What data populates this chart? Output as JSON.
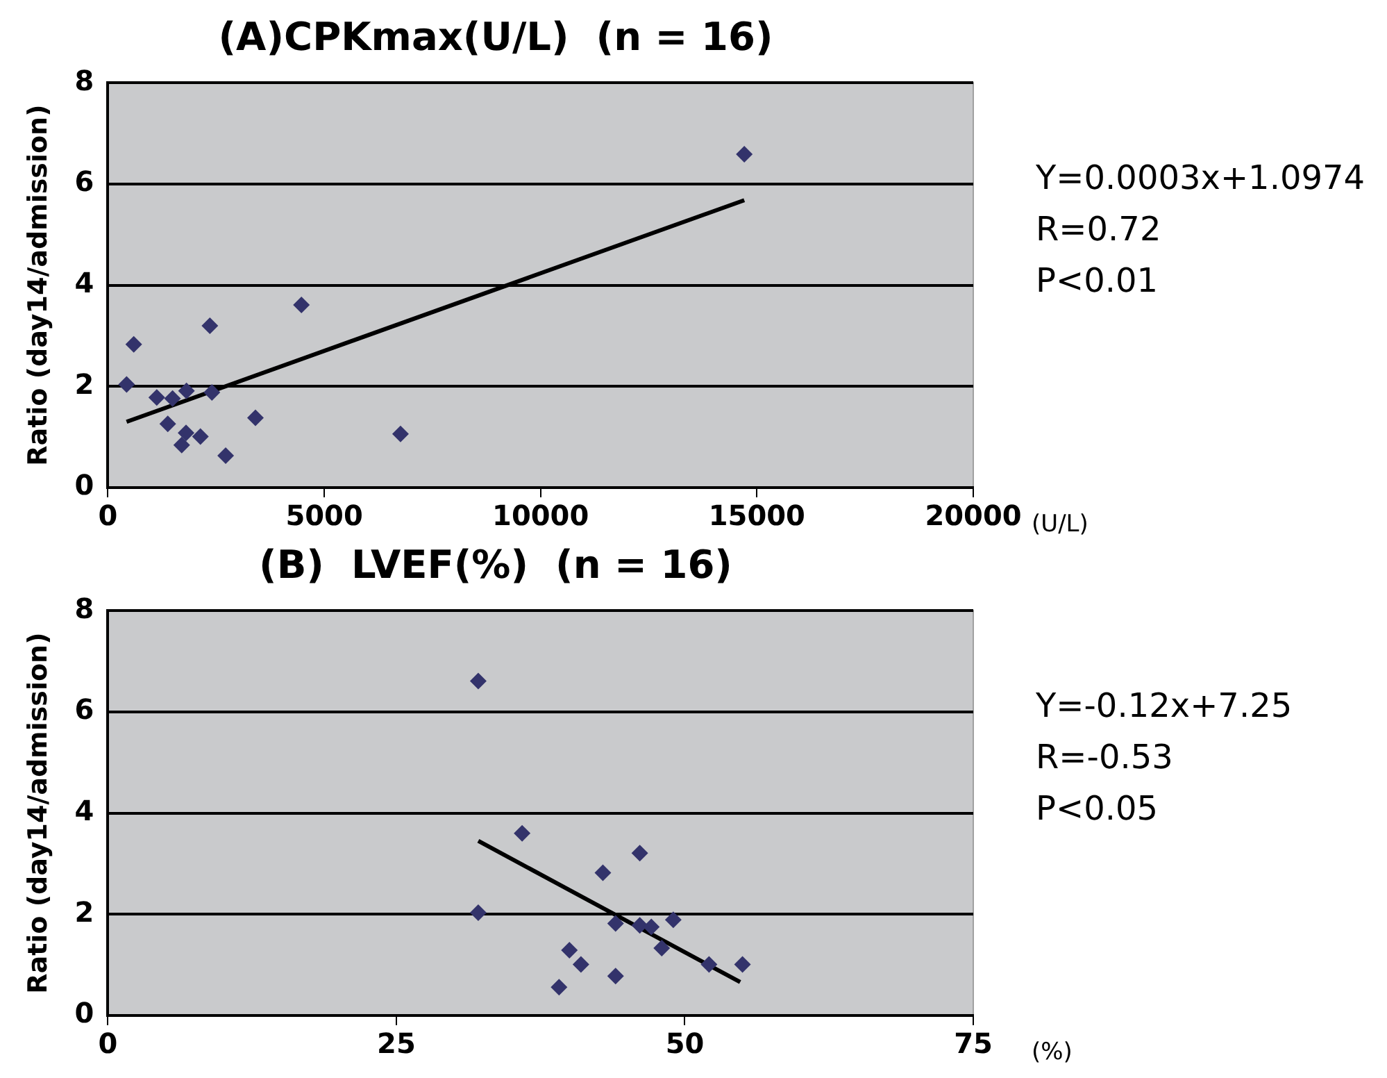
{
  "chart_data": [
    {
      "type": "scatter",
      "title": "(A)CPKmax(U/L)  (n = 16)",
      "xlabel": "(U/L)",
      "ylabel": "Ratio (day14/admission)",
      "xlim": [
        0,
        20000
      ],
      "xticks": [
        0,
        5000,
        10000,
        15000,
        20000
      ],
      "ylim": [
        0,
        8
      ],
      "yticks": [
        0,
        2,
        4,
        6,
        8
      ],
      "grid": "y",
      "legend": false,
      "annotations": [
        "Y=0.0003x+1.0974",
        "R=0.72",
        "P<0.01"
      ],
      "series": [
        {
          "type": "scatter",
          "color": "#33336b",
          "marker": "diamond",
          "x": [
            432,
            598,
            1129,
            1494,
            1816,
            1384,
            1806,
            1706,
            2138,
            2357,
            2404,
            2722,
            3410,
            4472,
            6763,
            14708
          ],
          "values": [
            2.04,
            2.83,
            1.78,
            1.76,
            1.91,
            1.26,
            1.08,
            0.84,
            1.01,
            3.2,
            1.88,
            0.63,
            1.38,
            3.61,
            1.06,
            6.59
          ]
        },
        {
          "type": "line",
          "color": "#000000",
          "marker": "none",
          "x": [
            432,
            14708
          ],
          "values": [
            1.3,
            5.68
          ]
        }
      ]
    },
    {
      "type": "scatter",
      "title": "(B)  LVEF(%)  (n = 16)",
      "xlabel": "(%)",
      "ylabel": "Ratio (day14/admission)",
      "xlim": [
        0,
        75
      ],
      "xticks": [
        0,
        25,
        50,
        75
      ],
      "ylim": [
        0,
        8
      ],
      "yticks": [
        0,
        2,
        4,
        6,
        8
      ],
      "grid": "y",
      "legend": false,
      "annotations": [
        "Y=-0.12x+7.25",
        "R=-0.53",
        "P<0.05"
      ],
      "series": [
        {
          "type": "scatter",
          "color": "#33336b",
          "marker": "diamond",
          "x": [
            32.1,
            32.1,
            35.9,
            42.9,
            46.1,
            44,
            46.1,
            47.1,
            49,
            48,
            40,
            41,
            39.1,
            44,
            52.1,
            55
          ],
          "values": [
            6.61,
            2.03,
            3.6,
            2.82,
            3.21,
            1.82,
            1.78,
            1.75,
            1.89,
            1.33,
            1.29,
            1.01,
            0.56,
            0.78,
            1.01,
            1.01
          ]
        },
        {
          "type": "line",
          "color": "#000000",
          "marker": "none",
          "x": [
            32.1,
            54.8
          ],
          "values": [
            3.45,
            0.66
          ]
        }
      ]
    }
  ]
}
